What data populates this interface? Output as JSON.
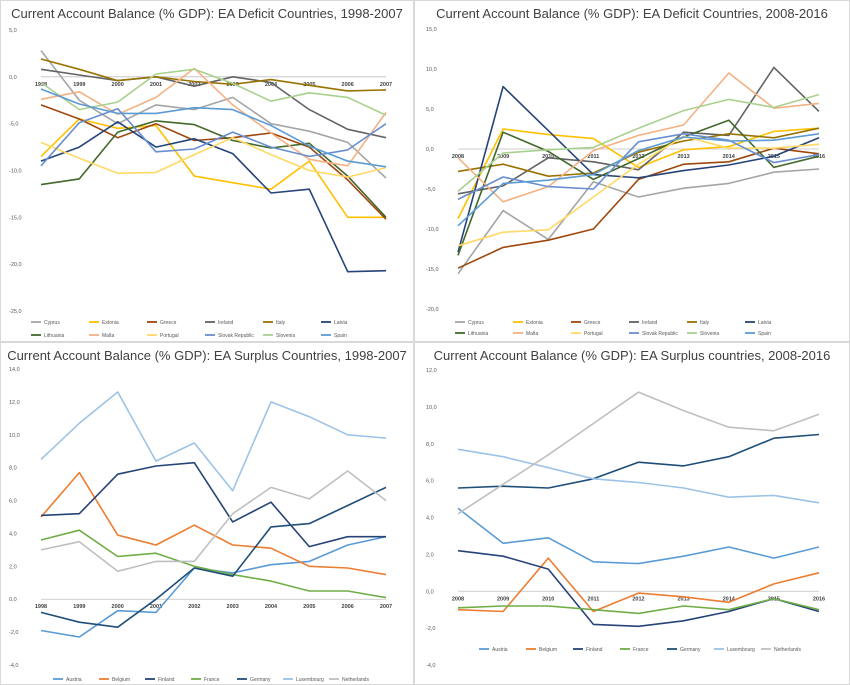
{
  "charts": [
    {
      "title": "Current Account Balance (% GDP): EA Deficit Countries, 1998-2007",
      "chart_data": {
        "type": "line",
        "title": "Current Account Balance (% GDP): EA Deficit Countries, 1998-2007",
        "x": [
          "1998",
          "1999",
          "2000",
          "2001",
          "2002",
          "2003",
          "2004",
          "2005",
          "2006",
          "2007"
        ],
        "ylim": [
          -25,
          5
        ],
        "yticks": [
          "5,0",
          "0,0",
          "-5,0",
          "-10,0",
          "-15,0",
          "-20,0",
          "-25,0"
        ],
        "grid": false,
        "legend": "bottom",
        "series": [
          {
            "name": "Cyprus",
            "color": "#a5a5a5",
            "values": [
              2.8,
              -2.5,
              -5.0,
              -3.0,
              -3.5,
              -2.2,
              -5.0,
              -5.8,
              -7.0,
              -10.8
            ]
          },
          {
            "name": "Estonia",
            "color": "#ffc000",
            "values": [
              -8.5,
              -4.5,
              -5.5,
              -5.2,
              -10.6,
              -11.3,
              -12.0,
              -9.0,
              -15.0,
              -15.0
            ]
          },
          {
            "name": "Greece",
            "color": "#9e480e",
            "values": [
              -3.0,
              -4.5,
              -6.5,
              -5.0,
              -6.8,
              -6.5,
              -6.0,
              -7.5,
              -11.0,
              -15.2
            ]
          },
          {
            "name": "Ireland",
            "color": "#636363",
            "values": [
              0.8,
              0.2,
              -0.4,
              0.0,
              -1.0,
              0.0,
              -0.6,
              -3.5,
              -5.6,
              -6.5
            ]
          },
          {
            "name": "Italy",
            "color": "#997300",
            "values": [
              1.9,
              0.8,
              -0.4,
              0.0,
              -0.5,
              -0.8,
              -0.3,
              -0.9,
              -1.5,
              -1.4
            ]
          },
          {
            "name": "Latvia",
            "color": "#264478",
            "values": [
              -9.0,
              -7.5,
              -4.8,
              -7.5,
              -6.6,
              -8.2,
              -12.4,
              -12.0,
              -20.8,
              -20.7
            ]
          },
          {
            "name": "Lithuania",
            "color": "#43682b",
            "values": [
              -11.5,
              -10.9,
              -5.9,
              -4.7,
              -5.1,
              -6.8,
              -7.6,
              -7.1,
              -10.6,
              -15.0
            ]
          },
          {
            "name": "Malta",
            "color": "#f4b183",
            "values": [
              -2.4,
              -1.6,
              -4.0,
              -2.2,
              0.9,
              -3.0,
              -6.0,
              -8.8,
              -9.5,
              -3.8
            ]
          },
          {
            "name": "Portugal",
            "color": "#ffd966",
            "values": [
              -7.0,
              -8.7,
              -10.3,
              -10.2,
              -8.3,
              -6.5,
              -8.3,
              -10.0,
              -10.7,
              -9.7
            ]
          },
          {
            "name": "Slovak Republic",
            "color": "#698ed0",
            "values": [
              -9.5,
              -4.9,
              -3.4,
              -8.0,
              -7.7,
              -5.9,
              -7.5,
              -8.5,
              -7.8,
              -5.0
            ]
          },
          {
            "name": "Slovenia",
            "color": "#a9d18e",
            "values": [
              -0.6,
              -3.5,
              -2.7,
              0.3,
              0.8,
              -0.7,
              -2.6,
              -1.7,
              -2.2,
              -4.1
            ]
          },
          {
            "name": "Spain",
            "color": "#5b9bd5",
            "values": [
              -1.3,
              -2.9,
              -3.9,
              -3.9,
              -3.3,
              -3.5,
              -5.2,
              -7.4,
              -9.0,
              -9.6
            ]
          }
        ]
      }
    },
    {
      "title": "Current Account Balance (% GDP): EA Deficit Countries, 2008-2016",
      "chart_data": {
        "type": "line",
        "title": "Current Account Balance (% GDP): EA Deficit Countries, 2008-2016",
        "x": [
          "2008",
          "2009",
          "2010",
          "2011",
          "2012",
          "2013",
          "2014",
          "2015",
          "2016"
        ],
        "ylim": [
          -20,
          15
        ],
        "yticks": [
          "15,0",
          "10,0",
          "5,0",
          "0,0",
          "-5,0",
          "-10,0",
          "-15,0",
          "-20,0"
        ],
        "grid": false,
        "legend": "bottom",
        "series": [
          {
            "name": "Cyprus",
            "color": "#a5a5a5",
            "values": [
              -15.6,
              -7.7,
              -11.3,
              -4.1,
              -6.0,
              -4.9,
              -4.3,
              -2.9,
              -2.5
            ]
          },
          {
            "name": "Estonia",
            "color": "#ffc000",
            "values": [
              -8.7,
              2.5,
              1.8,
              1.3,
              -2.3,
              -0.1,
              0.3,
              2.2,
              2.6
            ]
          },
          {
            "name": "Greece",
            "color": "#9e480e",
            "values": [
              -14.9,
              -12.3,
              -11.4,
              -10.0,
              -3.8,
              -1.9,
              -1.6,
              0.1,
              -0.6
            ]
          },
          {
            "name": "Ireland",
            "color": "#636363",
            "values": [
              -5.6,
              -4.6,
              -1.1,
              -1.6,
              -2.6,
              2.1,
              1.7,
              10.2,
              4.7
            ]
          },
          {
            "name": "Italy",
            "color": "#997300",
            "values": [
              -2.8,
              -1.9,
              -3.4,
              -3.0,
              -0.4,
              1.0,
              1.9,
              1.4,
              2.6
            ]
          },
          {
            "name": "Latvia",
            "color": "#264478",
            "values": [
              -12.9,
              7.8,
              2.3,
              -3.2,
              -3.6,
              -2.7,
              -2.0,
              -0.9,
              1.4
            ]
          },
          {
            "name": "Lithuania",
            "color": "#43682b",
            "values": [
              -13.3,
              2.1,
              -0.3,
              -3.8,
              -1.2,
              1.5,
              3.6,
              -2.3,
              -0.9
            ]
          },
          {
            "name": "Malta",
            "color": "#f4b183",
            "values": [
              -1.1,
              -6.6,
              -4.7,
              -0.2,
              1.7,
              3.0,
              9.5,
              5.1,
              5.7
            ]
          },
          {
            "name": "Portugal",
            "color": "#ffd966",
            "values": [
              -12.1,
              -10.4,
              -10.1,
              -6.0,
              -1.9,
              1.6,
              0.1,
              0.1,
              0.6
            ]
          },
          {
            "name": "Slovak Republic",
            "color": "#698ed0",
            "values": [
              -6.3,
              -3.5,
              -4.7,
              -5.0,
              0.9,
              1.9,
              1.1,
              -1.7,
              -0.7
            ]
          },
          {
            "name": "Slovenia",
            "color": "#a9d18e",
            "values": [
              -5.3,
              -0.5,
              -0.1,
              0.2,
              2.6,
              4.8,
              6.2,
              5.2,
              6.8
            ]
          },
          {
            "name": "Spain",
            "color": "#5b9bd5",
            "values": [
              -9.6,
              -4.3,
              -3.9,
              -3.2,
              -0.2,
              1.5,
              1.0,
              1.1,
              1.9
            ]
          }
        ]
      }
    },
    {
      "title": "Current Account Balance (% GDP): EA Surplus Countries, 1998-2007",
      "chart_data": {
        "type": "line",
        "title": "Current Account Balance (% GDP): EA Surplus Countries, 1998-2007",
        "x": [
          "1998",
          "1999",
          "2000",
          "2001",
          "2002",
          "2003",
          "2004",
          "2005",
          "2006",
          "2007"
        ],
        "ylim": [
          -4,
          14
        ],
        "yticks": [
          "14,0",
          "12,0",
          "10,0",
          "8,0",
          "6,0",
          "4,0",
          "2,0",
          "0,0",
          "-2,0",
          "-4,0"
        ],
        "grid": false,
        "legend": "bottom",
        "series": [
          {
            "name": "Austria",
            "color": "#5b9bd5",
            "values": [
              -1.9,
              -2.3,
              -0.7,
              -0.8,
              1.9,
              1.6,
              2.1,
              2.3,
              3.3,
              3.8
            ]
          },
          {
            "name": "Belgium",
            "color": "#ed7d31",
            "values": [
              5.0,
              7.7,
              3.9,
              3.3,
              4.5,
              3.3,
              3.1,
              2.0,
              1.9,
              1.5
            ]
          },
          {
            "name": "Finland",
            "color": "#264478",
            "values": [
              5.1,
              5.2,
              7.6,
              8.1,
              8.3,
              4.7,
              5.9,
              3.2,
              3.8,
              3.8
            ]
          },
          {
            "name": "France",
            "color": "#70ad47",
            "values": [
              3.6,
              4.2,
              2.6,
              2.8,
              2.0,
              1.5,
              1.1,
              0.5,
              0.5,
              0.1
            ]
          },
          {
            "name": "Germany",
            "color": "#1f4e79",
            "values": [
              -0.8,
              -1.4,
              -1.7,
              0.0,
              1.9,
              1.4,
              4.4,
              4.6,
              5.7,
              6.8
            ]
          },
          {
            "name": "Luxembourg",
            "color": "#9dc3e6",
            "values": [
              8.5,
              10.7,
              12.6,
              8.4,
              9.5,
              6.6,
              12.0,
              11.1,
              10.0,
              9.8
            ]
          },
          {
            "name": "Netherlands",
            "color": "#bfbfbf",
            "values": [
              3.0,
              3.5,
              1.7,
              2.3,
              2.3,
              5.2,
              6.8,
              6.1,
              7.8,
              6.0
            ]
          }
        ]
      }
    },
    {
      "title": "Current Account Balance (% GDP): EA Surplus countries, 2008-2016",
      "chart_data": {
        "type": "line",
        "title": "Current Account Balance (% GDP): EA Surplus countries, 2008-2016",
        "x": [
          "2008",
          "2009",
          "2010",
          "2011",
          "2012",
          "2013",
          "2014",
          "2015",
          "2016"
        ],
        "ylim": [
          -4,
          12
        ],
        "yticks": [
          "12,0",
          "10,0",
          "8,0",
          "6,0",
          "4,0",
          "2,0",
          "0,0",
          "-2,0",
          "-4,0"
        ],
        "grid": false,
        "legend": "bottom",
        "series": [
          {
            "name": "Austria",
            "color": "#5b9bd5",
            "values": [
              4.5,
              2.6,
              2.9,
              1.6,
              1.5,
              1.9,
              2.4,
              1.8,
              2.4
            ]
          },
          {
            "name": "Belgium",
            "color": "#ed7d31",
            "values": [
              -1.0,
              -1.1,
              1.8,
              -1.1,
              -0.1,
              -0.3,
              -0.6,
              0.4,
              1.0
            ]
          },
          {
            "name": "Finland",
            "color": "#264478",
            "values": [
              2.2,
              1.9,
              1.2,
              -1.8,
              -1.9,
              -1.6,
              -1.1,
              -0.4,
              -1.1
            ]
          },
          {
            "name": "France",
            "color": "#70ad47",
            "values": [
              -0.9,
              -0.8,
              -0.8,
              -1.0,
              -1.2,
              -0.8,
              -1.0,
              -0.4,
              -1.0
            ]
          },
          {
            "name": "Germany",
            "color": "#1f4e79",
            "values": [
              5.6,
              5.7,
              5.6,
              6.1,
              7.0,
              6.8,
              7.3,
              8.3,
              8.5
            ]
          },
          {
            "name": "Luxembourg",
            "color": "#9dc3e6",
            "values": [
              7.7,
              7.3,
              6.7,
              6.1,
              5.9,
              5.6,
              5.1,
              5.2,
              4.8
            ]
          },
          {
            "name": "Netherlands",
            "color": "#bfbfbf",
            "values": [
              4.2,
              5.8,
              7.4,
              9.1,
              10.8,
              9.8,
              8.9,
              8.7,
              9.6
            ]
          }
        ]
      }
    }
  ]
}
